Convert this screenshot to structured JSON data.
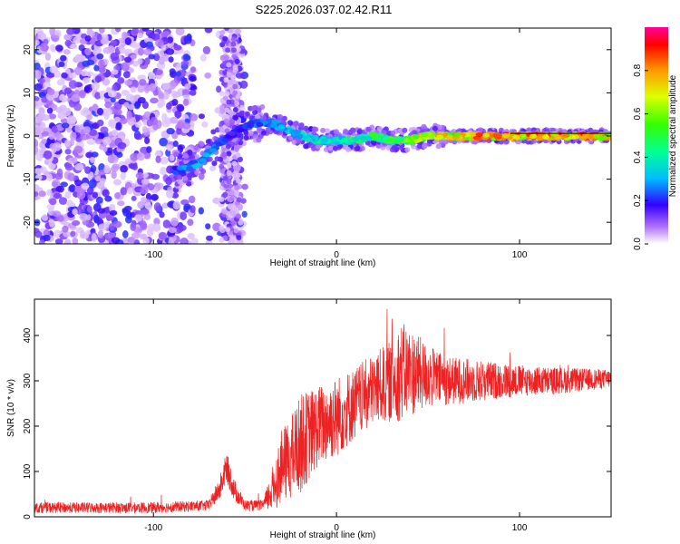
{
  "title": "S225.2026.037.02.42.R11",
  "chart_data": [
    {
      "type": "heatmap",
      "name": "spectrogram",
      "xlabel": "Height of straight line (km)",
      "ylabel": "Frequency (Hz)",
      "xlim": [
        -165,
        150
      ],
      "ylim": [
        -25,
        25
      ],
      "xticks": [
        -100,
        0,
        100
      ],
      "xtick_labels": [
        "-100",
        "0",
        "100"
      ],
      "yticks": [
        -20,
        -10,
        0,
        10,
        20
      ],
      "ytick_labels": [
        "-20",
        "-10",
        "0",
        "10",
        "20"
      ],
      "colorbar": {
        "label": "Normalized spectral amplitude",
        "range": [
          0,
          1
        ],
        "ticks": [
          0,
          0.2,
          0.4,
          0.6,
          0.8
        ],
        "tick_labels": [
          "0.0",
          "0.2",
          "0.4",
          "0.6",
          "0.8"
        ]
      },
      "ridge": {
        "description_points_x": [
          -85,
          -75,
          -65,
          -55,
          -45,
          -35,
          -25,
          -10,
          0,
          10,
          20,
          30,
          40,
          50,
          60,
          70,
          80,
          90,
          100,
          110,
          120,
          130,
          140,
          150
        ],
        "frequency_hz": [
          -8,
          -6,
          -2,
          1,
          3,
          3,
          1,
          -1,
          -1,
          -1,
          0,
          -1,
          -1,
          0,
          0,
          0,
          0,
          0,
          0,
          0,
          0,
          0,
          0,
          0
        ],
        "amplitude": [
          0.3,
          0.35,
          0.3,
          0.2,
          0.3,
          0.35,
          0.4,
          0.45,
          0.45,
          0.5,
          0.55,
          0.6,
          0.65,
          0.8,
          0.85,
          0.9,
          0.92,
          0.94,
          0.95,
          0.96,
          0.95,
          0.95,
          0.94,
          0.93
        ]
      }
    },
    {
      "type": "line",
      "name": "snr",
      "xlabel": "Height of straight line (km)",
      "ylabel": "SNR (10 * v/v)",
      "xlim": [
        -165,
        150
      ],
      "ylim": [
        0,
        480
      ],
      "xticks": [
        -100,
        0,
        100
      ],
      "xtick_labels": [
        "-100",
        "0",
        "100"
      ],
      "yticks": [
        0,
        100,
        200,
        300,
        400
      ],
      "ytick_labels": [
        "0",
        "100",
        "200",
        "300",
        "400"
      ],
      "color": "#ee2222",
      "envelope_x": [
        -165,
        -100,
        -70,
        -64,
        -60,
        -56,
        -50,
        -40,
        -35,
        -30,
        -25,
        -20,
        -10,
        0,
        10,
        20,
        30,
        35,
        40,
        50,
        60,
        80,
        100,
        120,
        150
      ],
      "envelope_mean": [
        20,
        20,
        25,
        60,
        110,
        60,
        25,
        25,
        60,
        110,
        130,
        160,
        200,
        220,
        250,
        280,
        300,
        320,
        320,
        310,
        300,
        300,
        300,
        300,
        305
      ],
      "envelope_spread": [
        12,
        12,
        12,
        25,
        35,
        25,
        12,
        12,
        50,
        80,
        90,
        110,
        90,
        90,
        80,
        80,
        90,
        110,
        100,
        70,
        55,
        45,
        35,
        30,
        20
      ]
    }
  ]
}
